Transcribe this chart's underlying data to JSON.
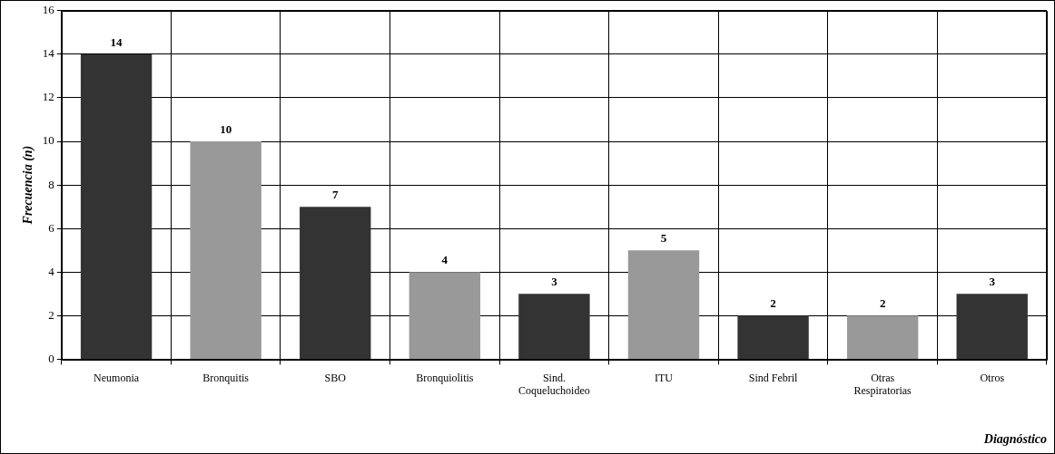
{
  "chart_data": {
    "type": "bar",
    "xlabel": "Diagnóstico",
    "ylabel": "Frecuencia (n)",
    "categories": [
      "Neumonia",
      "Bronquitis",
      "SBO",
      "Bronquiolitis",
      "Sind. Coqueluchoideo",
      "ITU",
      "Sind Febril",
      "Otras Respiratorias",
      "Otros"
    ],
    "values": [
      14,
      10,
      7,
      4,
      3,
      5,
      2,
      2,
      3
    ],
    "colors": [
      "#333333",
      "#999999",
      "#333333",
      "#999999",
      "#333333",
      "#999999",
      "#333333",
      "#999999",
      "#333333"
    ],
    "ylim": [
      0,
      16
    ],
    "yticks": [
      0,
      2,
      4,
      6,
      8,
      10,
      12,
      14,
      16
    ],
    "grid": true,
    "legend": false,
    "data_labels": true
  }
}
